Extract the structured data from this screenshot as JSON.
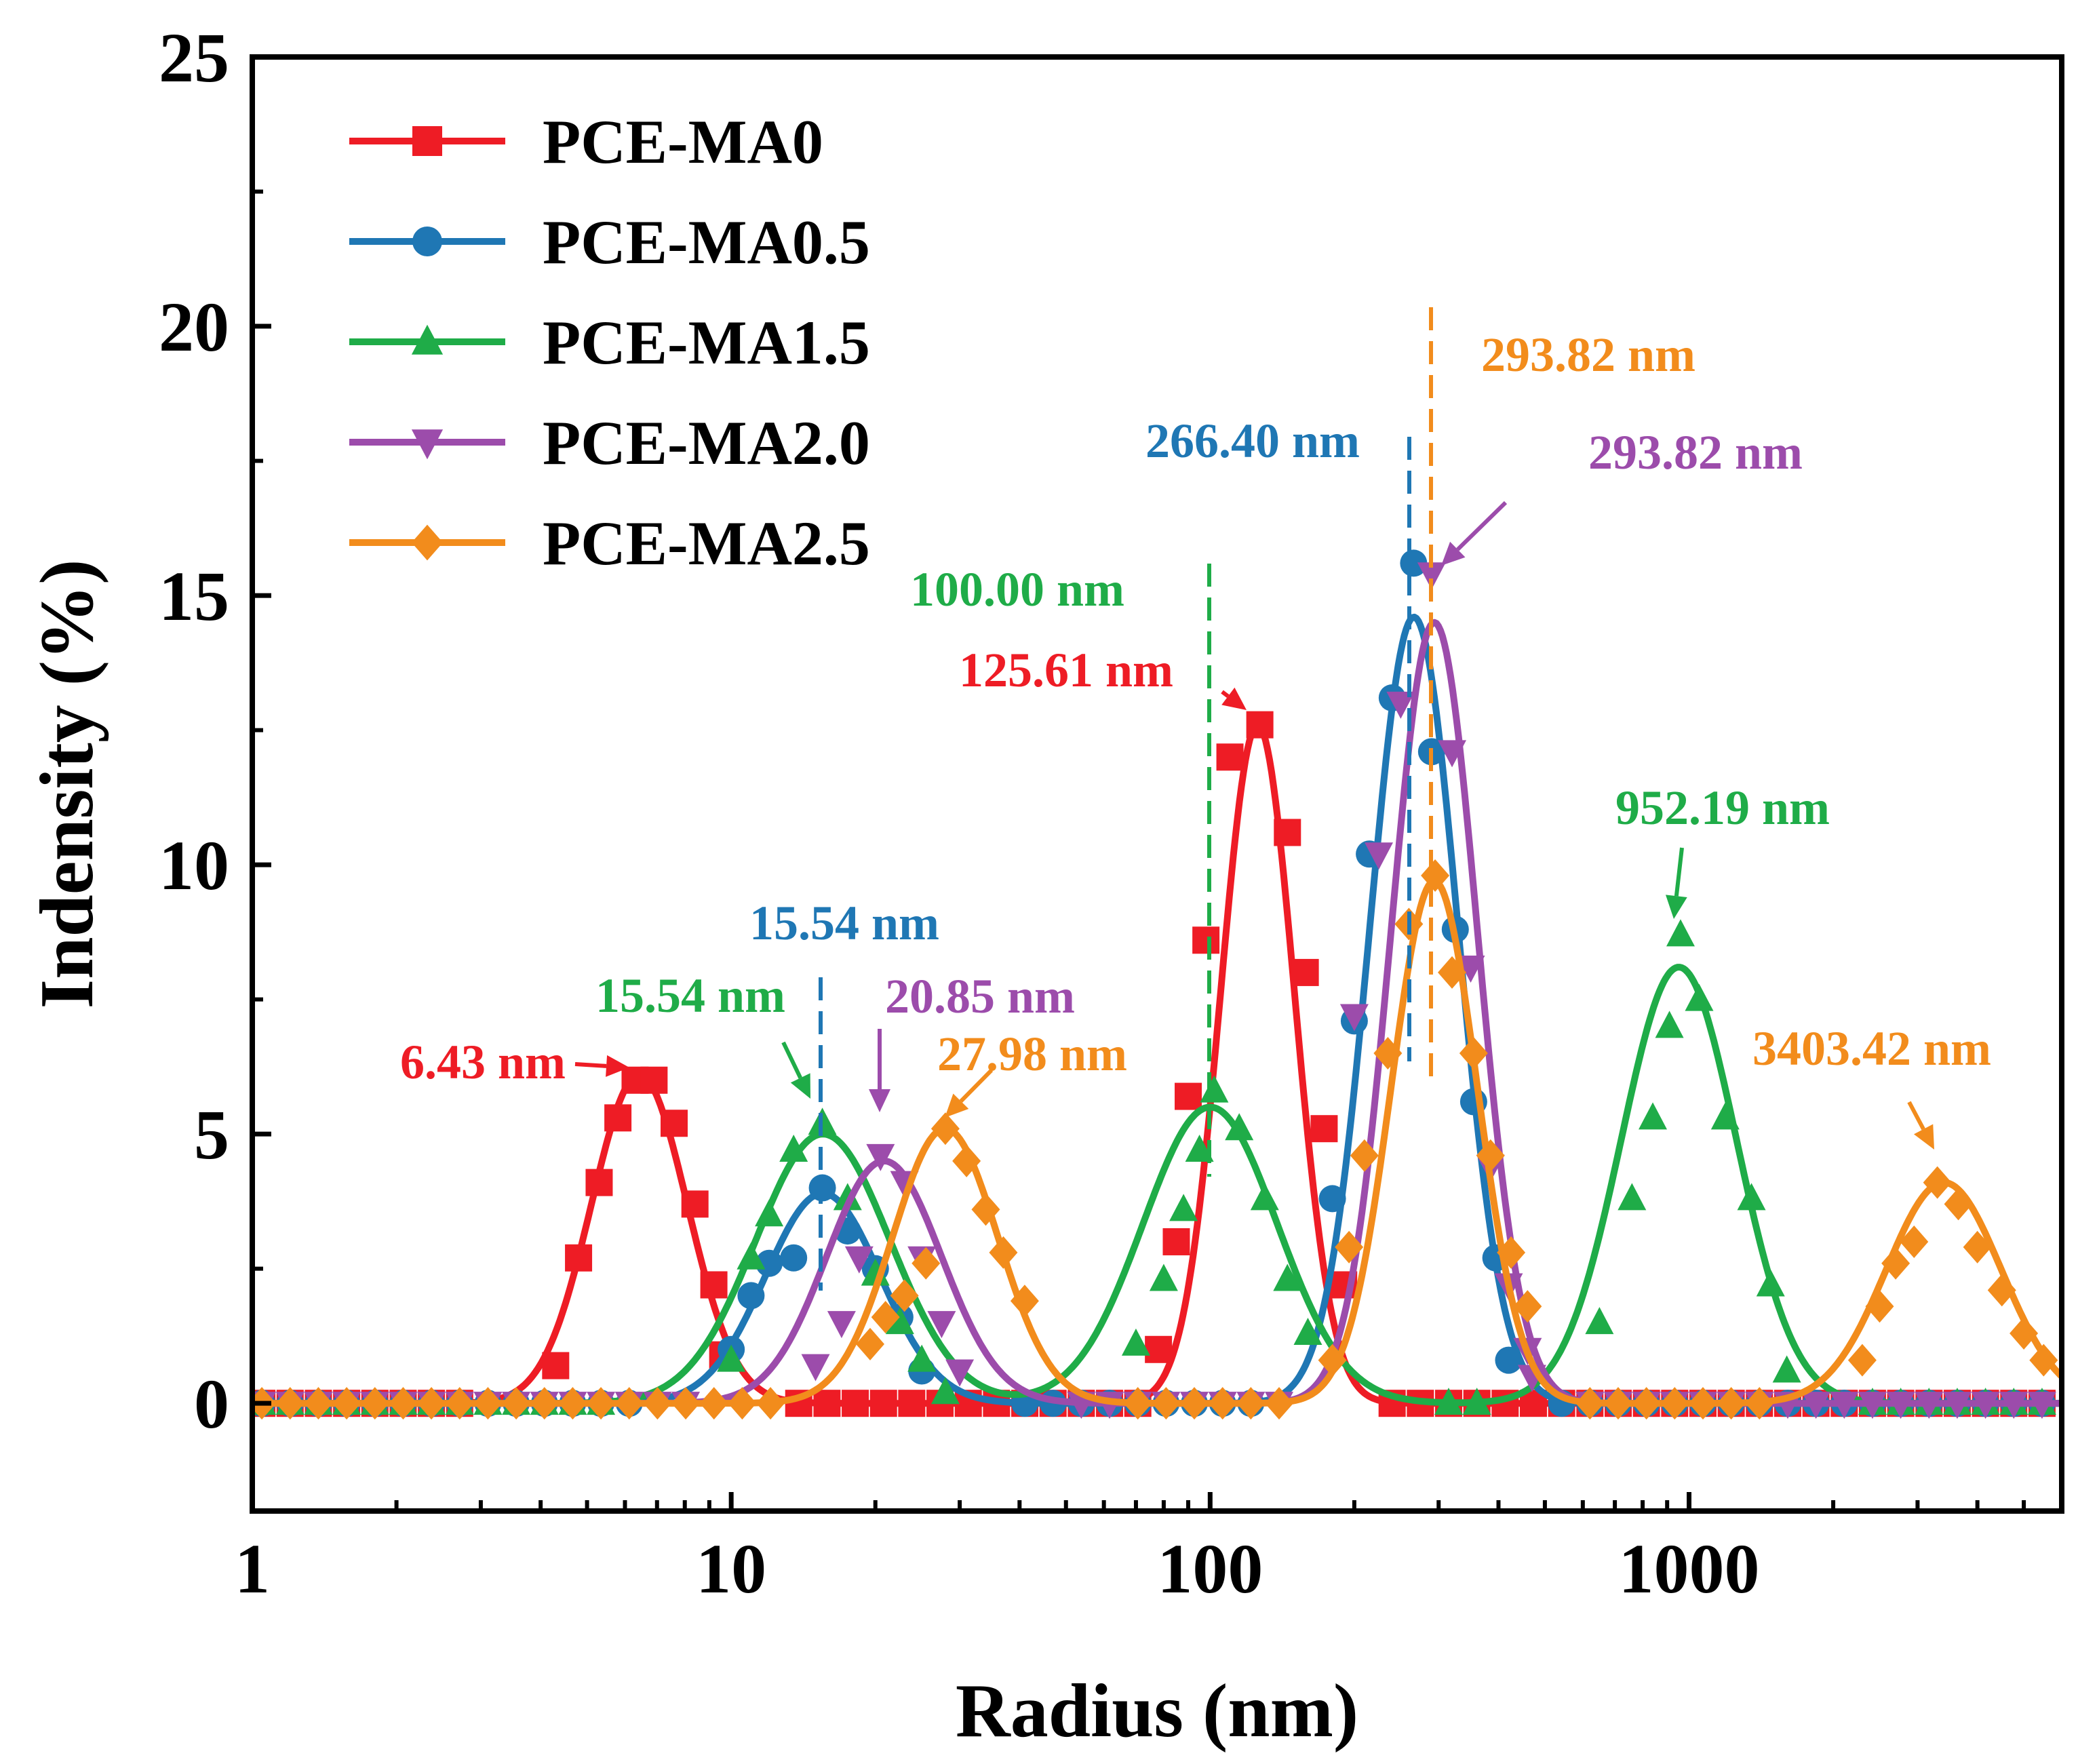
{
  "chart_data": {
    "type": "line",
    "title": "",
    "xlabel": "Radius (nm)",
    "ylabel": "Indensity (%)",
    "xscale": "log",
    "xlim": [
      1,
      6000
    ],
    "ylim": [
      -2,
      25
    ],
    "x_ticks": [
      1,
      10,
      100,
      1000
    ],
    "x_tick_labels": [
      "1",
      "10",
      "100",
      "1000"
    ],
    "y_ticks": [
      0,
      5,
      10,
      15,
      20,
      25
    ],
    "y_tick_labels": [
      "0",
      "5",
      "10",
      "15",
      "20",
      "25"
    ],
    "legend_position": "top-left",
    "series": [
      {
        "name": "PCE-MA0",
        "color": "#ee1c25",
        "marker": "square",
        "peaks": [
          {
            "center": 6.43,
            "height": 6.1,
            "sigma": 0.1
          },
          {
            "center": 125.61,
            "height": 12.6,
            "sigma": 0.077
          }
        ],
        "markers": [
          [
            4.3,
            0.7
          ],
          [
            4.8,
            2.7
          ],
          [
            5.3,
            4.1
          ],
          [
            5.8,
            5.3
          ],
          [
            6.3,
            6.0
          ],
          [
            6.9,
            6.0
          ],
          [
            7.6,
            5.2
          ],
          [
            8.4,
            3.7
          ],
          [
            9.2,
            2.2
          ],
          [
            9.6,
            0.9
          ],
          [
            78,
            1.0
          ],
          [
            85,
            3.0
          ],
          [
            90,
            5.7
          ],
          [
            98,
            8.6
          ],
          [
            110,
            12.0
          ],
          [
            127,
            12.6
          ],
          [
            145,
            10.6
          ],
          [
            158,
            8.0
          ],
          [
            173,
            5.1
          ],
          [
            190,
            2.2
          ]
        ]
      },
      {
        "name": "PCE-MA0.5",
        "color": "#1f77b4",
        "marker": "circle",
        "peaks": [
          {
            "center": 15.54,
            "height": 3.9,
            "sigma": 0.12
          },
          {
            "center": 266.4,
            "height": 14.6,
            "sigma": 0.092
          }
        ],
        "markers": [
          [
            10,
            1.0
          ],
          [
            11,
            2.0
          ],
          [
            12,
            2.6
          ],
          [
            13.5,
            2.7
          ],
          [
            15.5,
            4.0
          ],
          [
            17.5,
            3.2
          ],
          [
            20,
            2.5
          ],
          [
            22.5,
            1.6
          ],
          [
            25,
            0.6
          ],
          [
            180,
            3.8
          ],
          [
            200,
            7.1
          ],
          [
            215,
            10.2
          ],
          [
            240,
            13.1
          ],
          [
            266,
            15.6
          ],
          [
            290,
            12.1
          ],
          [
            325,
            8.8
          ],
          [
            355,
            5.6
          ],
          [
            395,
            2.7
          ],
          [
            420,
            0.8
          ]
        ]
      },
      {
        "name": "PCE-MA1.5",
        "color": "#1fac48",
        "marker": "triangle-up",
        "peaks": [
          {
            "center": 15.54,
            "height": 5.0,
            "sigma": 0.14
          },
          {
            "center": 100.0,
            "height": 5.5,
            "sigma": 0.14
          },
          {
            "center": 952.19,
            "height": 8.1,
            "sigma": 0.12
          }
        ],
        "markers": [
          [
            10,
            0.8
          ],
          [
            11,
            2.7
          ],
          [
            12,
            3.5
          ],
          [
            13.5,
            4.7
          ],
          [
            15.5,
            5.2
          ],
          [
            17.5,
            3.8
          ],
          [
            20,
            2.4
          ],
          [
            22.5,
            1.5
          ],
          [
            25,
            0.8
          ],
          [
            28,
            0.2
          ],
          [
            70,
            1.1
          ],
          [
            80,
            2.3
          ],
          [
            88,
            3.6
          ],
          [
            95,
            4.7
          ],
          [
            102,
            5.8
          ],
          [
            115,
            5.1
          ],
          [
            130,
            3.8
          ],
          [
            145,
            2.3
          ],
          [
            160,
            1.3
          ],
          [
            650,
            1.5
          ],
          [
            760,
            3.8
          ],
          [
            840,
            5.3
          ],
          [
            910,
            7.0
          ],
          [
            960,
            8.7
          ],
          [
            1050,
            7.5
          ],
          [
            1190,
            5.3
          ],
          [
            1350,
            3.8
          ],
          [
            1480,
            2.2
          ],
          [
            1600,
            0.6
          ]
        ]
      },
      {
        "name": "PCE-MA2.0",
        "color": "#9c4cab",
        "marker": "triangle-down",
        "peaks": [
          {
            "center": 20.85,
            "height": 4.5,
            "sigma": 0.12
          },
          {
            "center": 293.82,
            "height": 14.5,
            "sigma": 0.09
          }
        ],
        "markers": [
          [
            15,
            0.7
          ],
          [
            17,
            1.5
          ],
          [
            18.5,
            2.7
          ],
          [
            20.5,
            4.6
          ],
          [
            23,
            4.1
          ],
          [
            25,
            2.7
          ],
          [
            27.5,
            1.5
          ],
          [
            30,
            0.6
          ],
          [
            200,
            7.2
          ],
          [
            225,
            10.2
          ],
          [
            250,
            13.0
          ],
          [
            290,
            15.4
          ],
          [
            320,
            12.1
          ],
          [
            350,
            8.1
          ],
          [
            385,
            4.4
          ],
          [
            420,
            2.2
          ],
          [
            460,
            1.0
          ],
          [
            470,
            0.5
          ]
        ]
      },
      {
        "name": "PCE-MA2.5",
        "color": "#f28c1c",
        "marker": "diamond",
        "peaks": [
          {
            "center": 27.98,
            "height": 5.1,
            "sigma": 0.11
          },
          {
            "center": 293.82,
            "height": 9.7,
            "sigma": 0.09
          },
          {
            "center": 3403.42,
            "height": 4.1,
            "sigma": 0.12
          }
        ],
        "markers": [
          [
            19.5,
            1.1
          ],
          [
            21,
            1.6
          ],
          [
            23,
            2.0
          ],
          [
            25.5,
            2.6
          ],
          [
            28,
            5.1
          ],
          [
            31,
            4.5
          ],
          [
            34,
            3.6
          ],
          [
            37,
            2.8
          ],
          [
            41,
            1.9
          ],
          [
            180,
            0.8
          ],
          [
            195,
            2.9
          ],
          [
            210,
            4.6
          ],
          [
            235,
            6.5
          ],
          [
            260,
            8.9
          ],
          [
            295,
            9.8
          ],
          [
            320,
            8.0
          ],
          [
            355,
            6.5
          ],
          [
            385,
            4.6
          ],
          [
            425,
            2.8
          ],
          [
            460,
            1.8
          ],
          [
            2300,
            0.8
          ],
          [
            2500,
            1.8
          ],
          [
            2700,
            2.6
          ],
          [
            2950,
            3.0
          ],
          [
            3300,
            4.1
          ],
          [
            3650,
            3.7
          ],
          [
            4000,
            2.9
          ],
          [
            4500,
            2.1
          ],
          [
            5000,
            1.3
          ],
          [
            5500,
            0.8
          ]
        ]
      }
    ],
    "annotations": [
      {
        "text": "6.43 nm",
        "series": "PCE-MA0",
        "x": 6.43,
        "y": 6.1,
        "style": "arrow"
      },
      {
        "text": "125.61 nm",
        "series": "PCE-MA0",
        "x": 125.61,
        "y": 12.6,
        "style": "arrow"
      },
      {
        "text": "15.54 nm",
        "series": "PCE-MA0.5",
        "x": 15.54,
        "y": 4.0,
        "style": "dashed-line"
      },
      {
        "text": "266.40 nm",
        "series": "PCE-MA0.5",
        "x": 266.4,
        "y": 15.6,
        "style": "dashed-line"
      },
      {
        "text": "15.54 nm",
        "series": "PCE-MA1.5",
        "x": 15.54,
        "y": 5.2,
        "style": "arrow"
      },
      {
        "text": "100.00 nm",
        "series": "PCE-MA1.5",
        "x": 100.0,
        "y": 5.8,
        "style": "dashed-line"
      },
      {
        "text": "952.19 nm",
        "series": "PCE-MA1.5",
        "x": 952.19,
        "y": 8.7,
        "style": "arrow"
      },
      {
        "text": "20.85 nm",
        "series": "PCE-MA2.0",
        "x": 20.85,
        "y": 4.6,
        "style": "arrow"
      },
      {
        "text": "293.82 nm",
        "series": "PCE-MA2.0",
        "x": 293.82,
        "y": 15.4,
        "style": "arrow"
      },
      {
        "text": "27.98 nm",
        "series": "PCE-MA2.5",
        "x": 27.98,
        "y": 5.1,
        "style": "arrow"
      },
      {
        "text": "293.82 nm",
        "series": "PCE-MA2.5",
        "x": 293.82,
        "y": 9.8,
        "style": "dashed-line"
      },
      {
        "text": "3403.42 nm",
        "series": "PCE-MA2.5",
        "x": 3403.42,
        "y": 4.1,
        "style": "arrow"
      }
    ]
  }
}
